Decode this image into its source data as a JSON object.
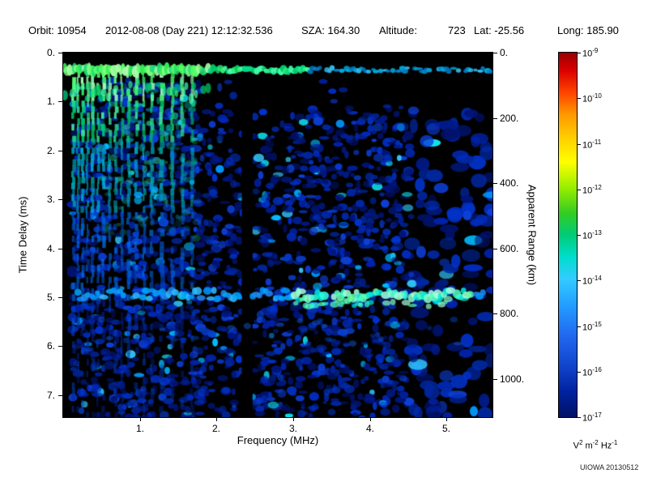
{
  "header": {
    "items": [
      {
        "text": "Orbit: 10954"
      },
      {
        "text": "2012-08-08 (Day 221) 12:12:32.536"
      },
      {
        "text": "SZA: 164.30"
      },
      {
        "text": "Altitude:"
      },
      {
        "text": "723"
      },
      {
        "text": "Lat: -25.56"
      },
      {
        "text": "Long: 185.90"
      }
    ]
  },
  "watermark": "UIOWA 20130512",
  "chart_data": {
    "type": "heatmap",
    "xlabel": "Frequency (MHz)",
    "ylabel_left": "Time Delay (ms)",
    "ylabel_right": "Apparent Range (km)",
    "xlim": [
      0,
      5.6
    ],
    "ylim_ms": [
      0,
      7.45
    ],
    "range_per_ms_km": 150,
    "grid": false,
    "x_ticks": [
      {
        "v": 1,
        "label": "1."
      },
      {
        "v": 2,
        "label": "2."
      },
      {
        "v": 3,
        "label": "3."
      },
      {
        "v": 4,
        "label": "4."
      },
      {
        "v": 5,
        "label": "5."
      }
    ],
    "y_ticks": [
      {
        "v": 0,
        "label": "0."
      },
      {
        "v": 1,
        "label": "1."
      },
      {
        "v": 2,
        "label": "2."
      },
      {
        "v": 3,
        "label": "3."
      },
      {
        "v": 4,
        "label": "4."
      },
      {
        "v": 5,
        "label": "5."
      },
      {
        "v": 6,
        "label": "6."
      },
      {
        "v": 7,
        "label": "7."
      }
    ],
    "right_ticks": [
      {
        "v": 0,
        "label": "0."
      },
      {
        "v": 200,
        "label": "200."
      },
      {
        "v": 400,
        "label": "400."
      },
      {
        "v": 600,
        "label": "600."
      },
      {
        "v": 800,
        "label": "800."
      },
      {
        "v": 1000,
        "label": "1000."
      }
    ],
    "colorbar": {
      "scale": "log",
      "unit_parts": [
        [
          "V",
          "2"
        ],
        [
          "m",
          "-2"
        ],
        [
          "Hz",
          "-1"
        ]
      ],
      "tick_exponents": [
        "-9",
        "-10",
        "-11",
        "-12",
        "-13",
        "-14",
        "-15",
        "-16",
        "-17"
      ],
      "stops": [
        {
          "pos": 0.0,
          "color": "#990000"
        },
        {
          "pos": 0.05,
          "color": "#dd0000"
        },
        {
          "pos": 0.11,
          "color": "#ff4400"
        },
        {
          "pos": 0.17,
          "color": "#ff9900"
        },
        {
          "pos": 0.23,
          "color": "#ffcc00"
        },
        {
          "pos": 0.3,
          "color": "#ffff00"
        },
        {
          "pos": 0.37,
          "color": "#99ee00"
        },
        {
          "pos": 0.44,
          "color": "#33cc22"
        },
        {
          "pos": 0.5,
          "color": "#00cc77"
        },
        {
          "pos": 0.56,
          "color": "#00ddcc"
        },
        {
          "pos": 0.62,
          "color": "#33ccff"
        },
        {
          "pos": 0.7,
          "color": "#2299ff"
        },
        {
          "pos": 0.78,
          "color": "#2266ee"
        },
        {
          "pos": 0.86,
          "color": "#1144cc"
        },
        {
          "pos": 0.93,
          "color": "#0022a0"
        },
        {
          "pos": 1.0,
          "color": "#001166"
        }
      ]
    },
    "features": {
      "ionosphere_echo_top_band": {
        "t_center_ms": 0.35,
        "thickness_ms": 0.25,
        "full_bright_until_mhz": 1.9,
        "bright_until_mhz": 3.2,
        "extends_to_mhz": 5.55
      },
      "surface_reflection_band": {
        "t_center_ms": 4.95,
        "f_start_mhz": 0.15,
        "f_end_mhz": 5.5,
        "bright_from_mhz": 3.0,
        "bright_to_mhz": 5.35,
        "apparent_range_km": 740
      },
      "harmonic_stripes_mhz": [
        [
          0.13,
          1,
          3
        ],
        [
          0.19,
          0.8,
          2
        ],
        [
          0.25,
          1,
          3
        ],
        [
          0.31,
          0.7,
          2
        ],
        [
          0.38,
          0.9,
          3
        ],
        [
          0.45,
          0.8,
          2
        ],
        [
          0.52,
          1,
          3
        ],
        [
          0.6,
          0.7,
          2
        ],
        [
          0.68,
          0.9,
          3
        ],
        [
          0.76,
          0.6,
          2
        ],
        [
          0.85,
          0.8,
          3
        ],
        [
          0.95,
          0.9,
          3
        ],
        [
          1.05,
          0.7,
          2
        ],
        [
          1.15,
          0.8,
          3
        ],
        [
          1.28,
          0.9,
          4
        ],
        [
          1.42,
          0.7,
          3
        ],
        [
          1.55,
          0.6,
          3
        ],
        [
          1.68,
          0.5,
          3
        ]
      ],
      "dark_gap": {
        "f_mhz": 2.4,
        "half_width_mhz": 0.07,
        "t_from_ms": 0.55
      },
      "dark_zone": {
        "f_from_mhz": 1.8,
        "t_from_ms": 0.55,
        "t_to_ms": 1.15
      },
      "faint_second_echo": {
        "t_from_ms": 5.45,
        "t_to_ms": 5.95,
        "f_from_mhz": 0.5,
        "f_to_mhz": 5.3
      },
      "left_cluster": {
        "f_from_mhz": 0.5,
        "f_to_mhz": 1.75,
        "t_from_ms": 0.6,
        "t_to_ms": 3.8,
        "count": 150
      }
    },
    "render": {
      "background": "#000000",
      "top_black_ms": 0.18,
      "right_sparse_from_mhz": 4.55,
      "noise": {
        "count": 2600,
        "colors": [
          "#001166",
          "#001a88",
          "#0022aa",
          "#002bbb",
          "#0033cc",
          "#0d3fd6",
          "#0027a0",
          "#001477"
        ],
        "bright_colors": [
          "#0099ff",
          "#00bbff",
          "#33ccff",
          "#0fe0ee"
        ]
      },
      "cluster_colors": [
        "#22cc88",
        "#00bb99",
        "#33ddaa",
        "#00aacc",
        "#1199dd"
      ],
      "stripe_colors": {
        "top": [
          "#55ff77",
          "#88ffaa",
          "#33ee66",
          "#aaffbb"
        ],
        "upper": [
          "#22dd88",
          "#00cc77",
          "#44eeaa",
          "#00bb66"
        ],
        "mid": [
          "#00aaaa",
          "#0099cc",
          "#00bbdd",
          "#008899"
        ],
        "lower": [
          "#0066dd",
          "#0055cc",
          "#0077ee",
          "#0044bb"
        ],
        "bottom": [
          "#0033aa",
          "#002299",
          "#0044cc",
          "#001f88"
        ]
      },
      "band_colors": {
        "bright_green": [
          "#55ff66",
          "#88ff88",
          "#33ee55",
          "#aaffaa",
          "#22dd77"
        ],
        "green": [
          "#33ee77",
          "#00dd88",
          "#44ffaa",
          "#00cc66"
        ],
        "dim": [
          "#00aadd",
          "#0088cc",
          "#33bbee",
          "#0077bb"
        ],
        "surface_bright": [
          "#55ffbb",
          "#33ffdd",
          "#88ffcc",
          "#00eedd",
          "#aaffdd",
          "#66ffaa"
        ],
        "surface_dim": [
          "#0099ff",
          "#00aaff",
          "#2288ee",
          "#33bbff"
        ],
        "faint": [
          "#0033aa",
          "#0044bb",
          "#1155cc"
        ]
      }
    }
  }
}
